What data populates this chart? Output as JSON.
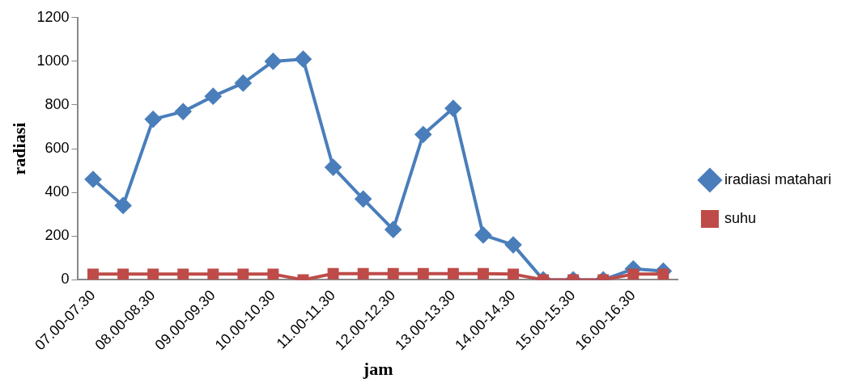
{
  "chart_data": {
    "type": "line",
    "xlabel": "jam",
    "ylabel": "radiasi",
    "categories": [
      "07.00-07.30",
      null,
      "08.00-08.30",
      null,
      "09.00-09.30",
      null,
      "10.00-10.30",
      null,
      "11.00-11.30",
      null,
      "12.00-12.30",
      null,
      "13.00-13.30",
      null,
      "14.00-14.30",
      null,
      "15.00-15.30",
      null,
      "16.00-16.30",
      null
    ],
    "series": [
      {
        "name": "iradiasi matahari",
        "color": "#4a7ebb",
        "marker": "diamond",
        "values": [
          460,
          340,
          735,
          770,
          840,
          900,
          1000,
          1010,
          515,
          370,
          230,
          665,
          785,
          205,
          160,
          0,
          0,
          0,
          50,
          40
        ]
      },
      {
        "name": "suhu",
        "color": "#be4b48",
        "marker": "square",
        "values": [
          26,
          26,
          26,
          26,
          26,
          26,
          26,
          0,
          28,
          28,
          28,
          28,
          28,
          28,
          26,
          0,
          0,
          0,
          26,
          26
        ]
      }
    ],
    "ylim": [
      0,
      1200
    ],
    "yticks": [
      0,
      200,
      400,
      600,
      800,
      1000,
      1200
    ],
    "grid": false,
    "legend": "right",
    "line_style": "solid"
  }
}
